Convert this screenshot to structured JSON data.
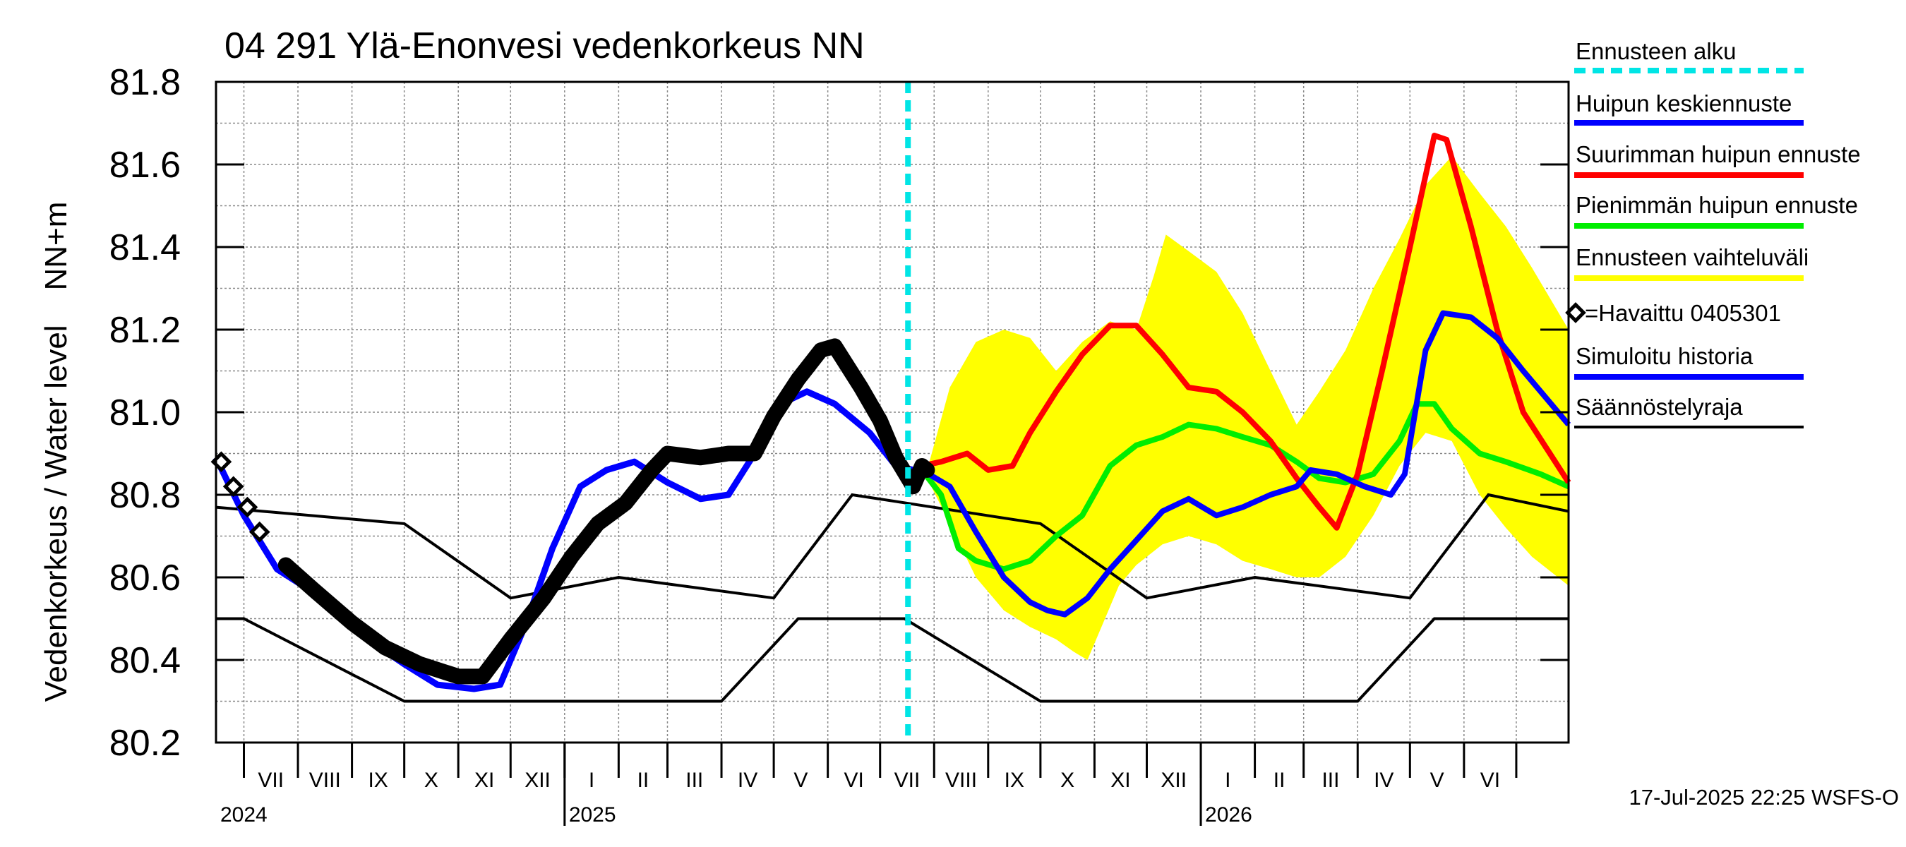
{
  "chart_data": {
    "type": "line",
    "title": "04 291 Ylä-Enonvesi vedenkorkeus NN",
    "ylabel": "Vedenkorkeus / Water level    NN+m",
    "ylim": [
      80.2,
      81.8
    ],
    "y_ticks": [
      "80.2",
      "80.4",
      "80.6",
      "80.8",
      "81.0",
      "81.2",
      "81.4",
      "81.6",
      "81.8"
    ],
    "x_range": [
      "2024-06-15",
      "2026-07-31"
    ],
    "grid": true,
    "legend_position": "right",
    "months": [
      "VII",
      "VIII",
      "IX",
      "X",
      "XI",
      "XII",
      "I",
      "II",
      "III",
      "IV",
      "V",
      "VI",
      "VII",
      "VIII",
      "IX",
      "X",
      "XI",
      "XII",
      "I",
      "II",
      "III",
      "IV",
      "V",
      "VI"
    ],
    "years": [
      {
        "label": "2024",
        "date": "2024-06-15"
      },
      {
        "label": "2025",
        "date": "2025-01-01"
      },
      {
        "label": "2026",
        "date": "2026-01-01"
      }
    ],
    "forecast_start": "2025-07-17",
    "timestamp": "17-Jul-2025 22:25 WSFS-O",
    "legend": {
      "forecast_start": "Ennusteen alku",
      "mean_peak": "Huipun keskiennuste",
      "max_peak": "Suurimman huipun ennuste",
      "min_peak": "Pienimmän huipun ennuste",
      "range": "Ennusteen vaihteluväli",
      "observed": "=Havaittu 0405301",
      "simulated": "Simuloitu historia",
      "regulation": "Säännöstelyraja"
    },
    "colors": {
      "forecast_start": "#00e5e5",
      "mean_peak": "#0000ff",
      "max_peak": "#ff0000",
      "min_peak": "#00ee00",
      "range": "#ffff00",
      "observed": "#000000",
      "simulated": "#0000ff",
      "regulation": "#000000"
    },
    "regulation_upper": [
      [
        "2024-06-15",
        80.77
      ],
      [
        "2024-10-01",
        80.73
      ],
      [
        "2024-12-01",
        80.55
      ],
      [
        "2025-02-01",
        80.6
      ],
      [
        "2025-05-01",
        80.55
      ],
      [
        "2025-06-15",
        80.8
      ],
      [
        "2025-10-01",
        80.73
      ],
      [
        "2025-12-01",
        80.55
      ],
      [
        "2026-02-01",
        80.6
      ],
      [
        "2026-05-01",
        80.55
      ],
      [
        "2026-06-15",
        80.8
      ],
      [
        "2026-07-31",
        80.76
      ]
    ],
    "regulation_lower": [
      [
        "2024-06-15",
        80.5
      ],
      [
        "2024-07-01",
        80.5
      ],
      [
        "2024-10-01",
        80.3
      ],
      [
        "2025-04-01",
        80.3
      ],
      [
        "2025-05-15",
        80.5
      ],
      [
        "2025-07-15",
        80.5
      ],
      [
        "2025-10-01",
        80.3
      ],
      [
        "2026-04-01",
        80.3
      ],
      [
        "2026-05-15",
        80.5
      ],
      [
        "2026-07-31",
        80.5
      ]
    ],
    "observed_sparse": [
      [
        "2024-06-18",
        80.88
      ],
      [
        "2024-06-25",
        80.82
      ],
      [
        "2024-07-03",
        80.77
      ],
      [
        "2024-07-10",
        80.71
      ]
    ],
    "observed": [
      [
        "2024-07-25",
        80.63
      ],
      [
        "2024-08-10",
        80.57
      ],
      [
        "2024-09-01",
        80.49
      ],
      [
        "2024-09-20",
        80.43
      ],
      [
        "2024-10-10",
        80.39
      ],
      [
        "2024-11-01",
        80.36
      ],
      [
        "2024-11-15",
        80.36
      ],
      [
        "2024-12-01",
        80.45
      ],
      [
        "2024-12-20",
        80.55
      ],
      [
        "2025-01-05",
        80.65
      ],
      [
        "2025-01-20",
        80.73
      ],
      [
        "2025-02-05",
        80.78
      ],
      [
        "2025-02-20",
        80.86
      ],
      [
        "2025-03-01",
        80.9
      ],
      [
        "2025-03-20",
        80.89
      ],
      [
        "2025-04-05",
        80.9
      ],
      [
        "2025-04-20",
        80.9
      ],
      [
        "2025-05-01",
        80.99
      ],
      [
        "2025-05-15",
        81.08
      ],
      [
        "2025-05-28",
        81.15
      ],
      [
        "2025-06-05",
        81.16
      ],
      [
        "2025-06-20",
        81.06
      ],
      [
        "2025-07-01",
        80.98
      ],
      [
        "2025-07-10",
        80.89
      ],
      [
        "2025-07-20",
        80.82
      ],
      [
        "2025-07-25",
        80.87
      ],
      [
        "2025-07-28",
        80.86
      ]
    ],
    "simulated": [
      [
        "2024-06-15",
        80.89
      ],
      [
        "2024-07-01",
        80.75
      ],
      [
        "2024-07-20",
        80.62
      ],
      [
        "2024-08-15",
        80.55
      ],
      [
        "2024-09-10",
        80.45
      ],
      [
        "2024-10-01",
        80.39
      ],
      [
        "2024-10-20",
        80.34
      ],
      [
        "2024-11-10",
        80.33
      ],
      [
        "2024-11-25",
        80.34
      ],
      [
        "2024-12-10",
        80.49
      ],
      [
        "2024-12-25",
        80.67
      ],
      [
        "2025-01-10",
        80.82
      ],
      [
        "2025-01-25",
        80.86
      ],
      [
        "2025-02-10",
        80.88
      ],
      [
        "2025-03-01",
        80.83
      ],
      [
        "2025-03-20",
        80.79
      ],
      [
        "2025-04-05",
        80.8
      ],
      [
        "2025-04-20",
        80.9
      ],
      [
        "2025-05-05",
        81.02
      ],
      [
        "2025-05-20",
        81.05
      ],
      [
        "2025-06-05",
        81.02
      ],
      [
        "2025-06-25",
        80.95
      ],
      [
        "2025-07-10",
        80.87
      ],
      [
        "2025-07-20",
        80.86
      ]
    ],
    "range_upper": [
      [
        "2025-07-28",
        80.86
      ],
      [
        "2025-08-10",
        81.06
      ],
      [
        "2025-08-25",
        81.17
      ],
      [
        "2025-09-10",
        81.2
      ],
      [
        "2025-09-25",
        81.18
      ],
      [
        "2025-10-10",
        81.1
      ],
      [
        "2025-10-25",
        81.17
      ],
      [
        "2025-11-10",
        81.22
      ],
      [
        "2025-11-25",
        81.2
      ],
      [
        "2025-12-05",
        81.33
      ],
      [
        "2025-12-12",
        81.43
      ],
      [
        "2025-12-25",
        81.39
      ],
      [
        "2026-01-10",
        81.34
      ],
      [
        "2026-01-25",
        81.24
      ],
      [
        "2026-02-10",
        81.1
      ],
      [
        "2026-02-25",
        80.97
      ],
      [
        "2026-03-10",
        81.05
      ],
      [
        "2026-03-25",
        81.15
      ],
      [
        "2026-04-10",
        81.3
      ],
      [
        "2026-04-25",
        81.42
      ],
      [
        "2026-05-10",
        81.55
      ],
      [
        "2026-05-25",
        81.62
      ],
      [
        "2026-06-10",
        81.53
      ],
      [
        "2026-06-25",
        81.45
      ],
      [
        "2026-07-10",
        81.35
      ],
      [
        "2026-07-31",
        81.2
      ]
    ],
    "range_lower": [
      [
        "2025-07-28",
        80.84
      ],
      [
        "2025-08-10",
        80.73
      ],
      [
        "2025-08-25",
        80.6
      ],
      [
        "2025-09-10",
        80.52
      ],
      [
        "2025-09-25",
        80.48
      ],
      [
        "2025-10-10",
        80.45
      ],
      [
        "2025-10-20",
        80.42
      ],
      [
        "2025-10-28",
        80.4
      ],
      [
        "2025-11-05",
        80.48
      ],
      [
        "2025-11-15",
        80.58
      ],
      [
        "2025-11-25",
        80.63
      ],
      [
        "2025-12-10",
        80.68
      ],
      [
        "2025-12-25",
        80.7
      ],
      [
        "2026-01-10",
        80.68
      ],
      [
        "2026-01-25",
        80.64
      ],
      [
        "2026-02-10",
        80.62
      ],
      [
        "2026-02-25",
        80.6
      ],
      [
        "2026-03-10",
        80.6
      ],
      [
        "2026-03-25",
        80.65
      ],
      [
        "2026-04-10",
        80.75
      ],
      [
        "2026-04-25",
        80.87
      ],
      [
        "2026-05-10",
        80.95
      ],
      [
        "2026-05-25",
        80.93
      ],
      [
        "2026-06-10",
        80.8
      ],
      [
        "2026-06-25",
        80.72
      ],
      [
        "2026-07-10",
        80.65
      ],
      [
        "2026-07-31",
        80.58
      ]
    ],
    "max_peak": [
      [
        "2025-07-25",
        80.87
      ],
      [
        "2025-08-05",
        80.88
      ],
      [
        "2025-08-20",
        80.9
      ],
      [
        "2025-09-01",
        80.86
      ],
      [
        "2025-09-15",
        80.87
      ],
      [
        "2025-09-25",
        80.95
      ],
      [
        "2025-10-10",
        81.05
      ],
      [
        "2025-10-25",
        81.14
      ],
      [
        "2025-11-10",
        81.21
      ],
      [
        "2025-11-25",
        81.21
      ],
      [
        "2025-12-10",
        81.14
      ],
      [
        "2025-12-25",
        81.06
      ],
      [
        "2026-01-10",
        81.05
      ],
      [
        "2026-01-25",
        81.0
      ],
      [
        "2026-02-10",
        80.93
      ],
      [
        "2026-02-25",
        80.84
      ],
      [
        "2026-03-10",
        80.77
      ],
      [
        "2026-03-20",
        80.72
      ],
      [
        "2026-04-01",
        80.85
      ],
      [
        "2026-04-15",
        81.1
      ],
      [
        "2026-05-01",
        81.4
      ],
      [
        "2026-05-15",
        81.67
      ],
      [
        "2026-05-22",
        81.66
      ],
      [
        "2026-06-05",
        81.45
      ],
      [
        "2026-06-20",
        81.2
      ],
      [
        "2026-07-05",
        81.0
      ],
      [
        "2026-07-31",
        80.83
      ]
    ],
    "min_peak": [
      [
        "2025-07-25",
        80.86
      ],
      [
        "2025-08-05",
        80.8
      ],
      [
        "2025-08-15",
        80.67
      ],
      [
        "2025-08-25",
        80.64
      ],
      [
        "2025-09-10",
        80.62
      ],
      [
        "2025-09-25",
        80.64
      ],
      [
        "2025-10-10",
        80.7
      ],
      [
        "2025-10-25",
        80.75
      ],
      [
        "2025-11-10",
        80.87
      ],
      [
        "2025-11-25",
        80.92
      ],
      [
        "2025-12-10",
        80.94
      ],
      [
        "2025-12-25",
        80.97
      ],
      [
        "2026-01-10",
        80.96
      ],
      [
        "2026-01-25",
        80.94
      ],
      [
        "2026-02-10",
        80.92
      ],
      [
        "2026-02-25",
        80.88
      ],
      [
        "2026-03-10",
        80.84
      ],
      [
        "2026-03-25",
        80.83
      ],
      [
        "2026-04-10",
        80.85
      ],
      [
        "2026-04-25",
        80.93
      ],
      [
        "2026-05-05",
        81.02
      ],
      [
        "2026-05-15",
        81.02
      ],
      [
        "2026-05-25",
        80.96
      ],
      [
        "2026-06-10",
        80.9
      ],
      [
        "2026-06-25",
        80.88
      ],
      [
        "2026-07-15",
        80.85
      ],
      [
        "2026-07-31",
        80.82
      ]
    ],
    "mean_peak": [
      [
        "2025-07-25",
        80.86
      ],
      [
        "2025-08-10",
        80.82
      ],
      [
        "2025-08-25",
        80.71
      ],
      [
        "2025-09-10",
        80.6
      ],
      [
        "2025-09-25",
        80.54
      ],
      [
        "2025-10-05",
        80.52
      ],
      [
        "2025-10-15",
        80.51
      ],
      [
        "2025-10-28",
        80.55
      ],
      [
        "2025-11-10",
        80.62
      ],
      [
        "2025-11-25",
        80.69
      ],
      [
        "2025-12-10",
        80.76
      ],
      [
        "2025-12-25",
        80.79
      ],
      [
        "2026-01-10",
        80.75
      ],
      [
        "2026-01-25",
        80.77
      ],
      [
        "2026-02-10",
        80.8
      ],
      [
        "2026-02-25",
        80.82
      ],
      [
        "2026-03-05",
        80.86
      ],
      [
        "2026-03-20",
        80.85
      ],
      [
        "2026-04-05",
        80.82
      ],
      [
        "2026-04-20",
        80.8
      ],
      [
        "2026-04-28",
        80.85
      ],
      [
        "2026-05-10",
        81.15
      ],
      [
        "2026-05-20",
        81.24
      ],
      [
        "2026-06-05",
        81.23
      ],
      [
        "2026-06-20",
        81.18
      ],
      [
        "2026-07-05",
        81.1
      ],
      [
        "2026-07-31",
        80.97
      ]
    ]
  }
}
